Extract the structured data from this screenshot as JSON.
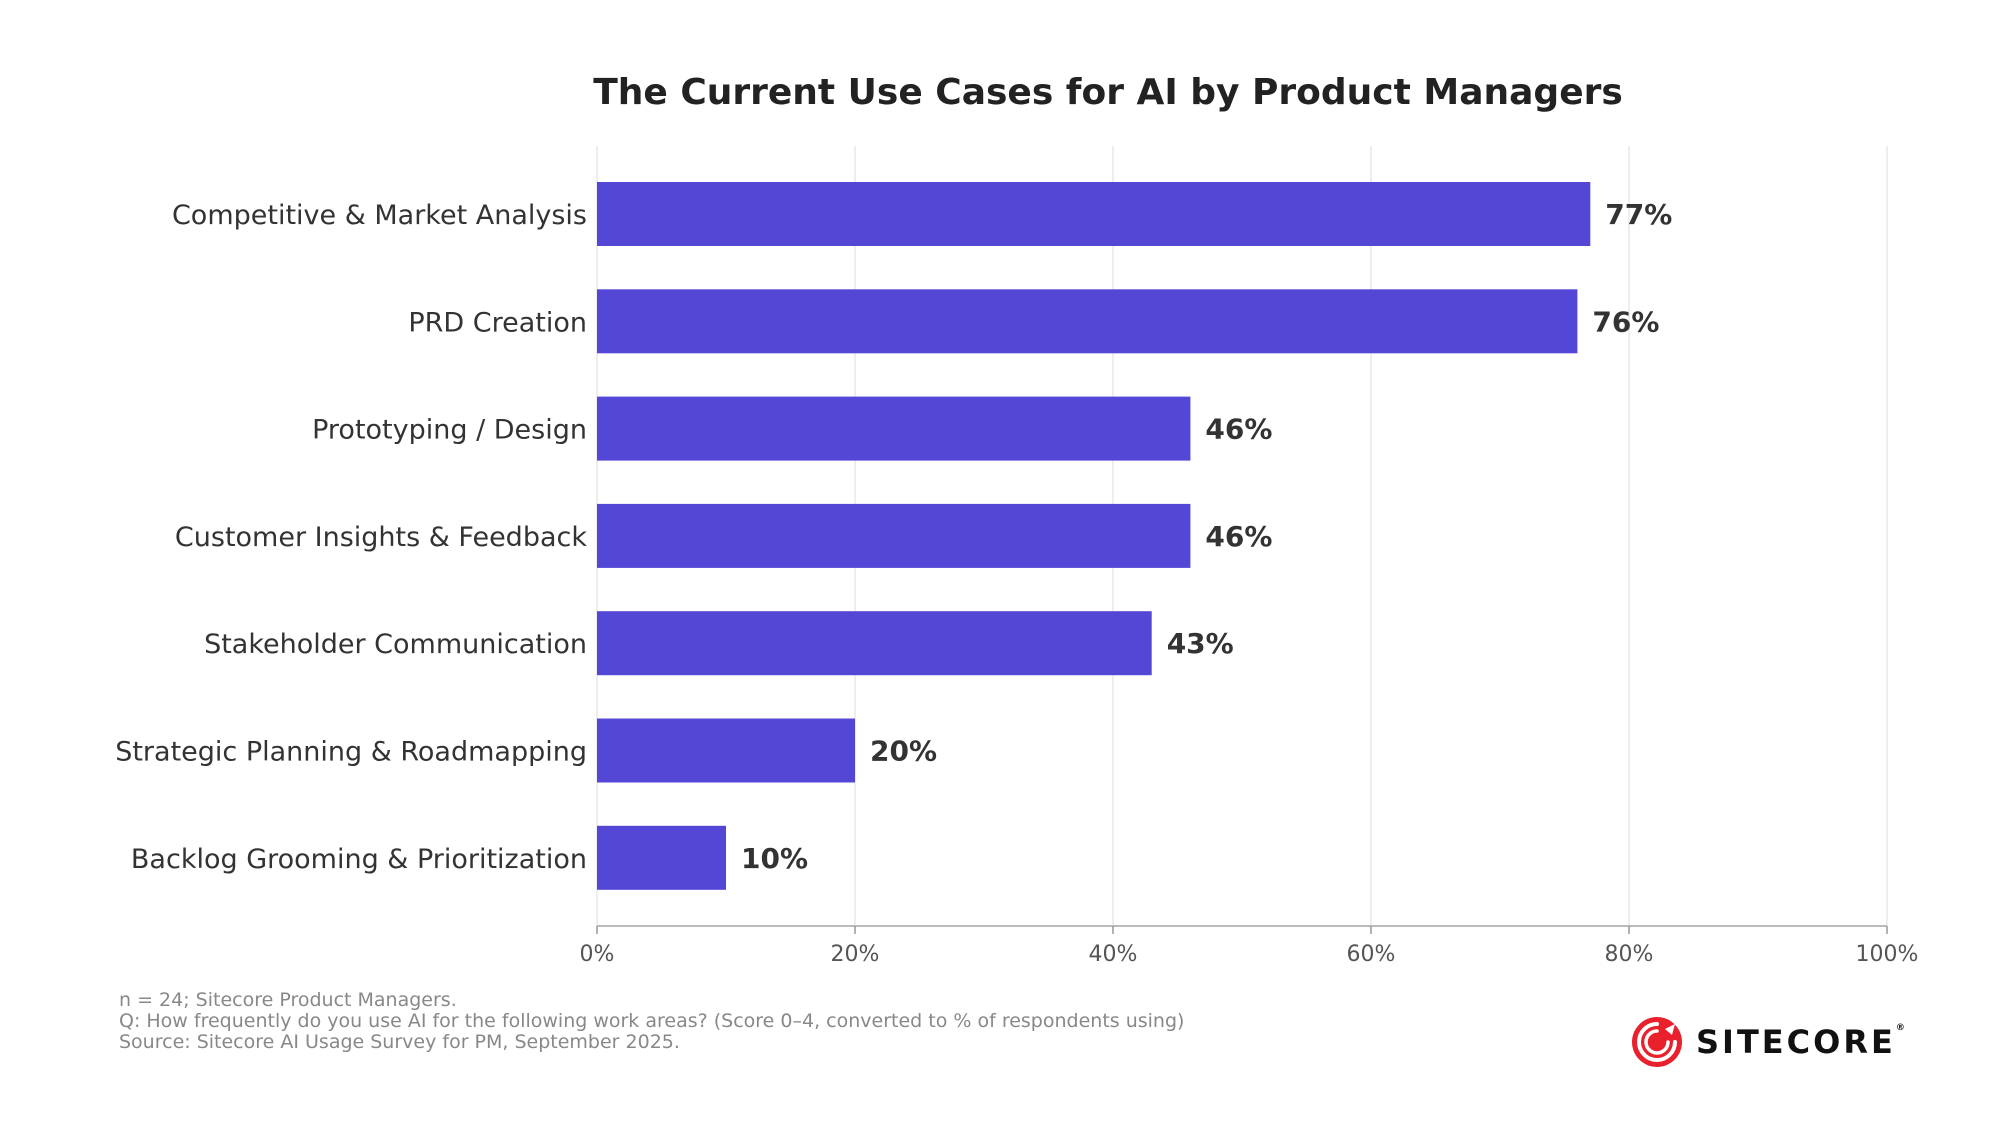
{
  "chart_data": {
    "type": "bar",
    "orientation": "horizontal",
    "title": "The Current Use Cases for AI by Product Managers",
    "categories": [
      "Competitive & Market Analysis",
      "PRD Creation",
      "Prototyping / Design",
      "Customer Insights & Feedback",
      "Stakeholder Communication",
      "Strategic Planning & Roadmapping",
      "Backlog Grooming & Prioritization"
    ],
    "values": [
      77,
      76,
      46,
      46,
      43,
      20,
      10
    ],
    "value_labels": [
      "77%",
      "76%",
      "46%",
      "46%",
      "43%",
      "20%",
      "10%"
    ],
    "xlim": [
      0,
      100
    ],
    "x_ticks": [
      0,
      20,
      40,
      60,
      80,
      100
    ],
    "x_tick_labels": [
      "0%",
      "20%",
      "40%",
      "60%",
      "80%",
      "100%"
    ],
    "grid": "vertical",
    "bar_color": "#5447d6",
    "xlabel": "",
    "ylabel": ""
  },
  "footnotes": [
    "n = 24; Sitecore Product Managers.",
    "Q: How frequently do you use AI for the following work areas? (Score 0–4, converted to % of respondents using)",
    "Source: Sitecore AI Usage Survey for PM, September 2025."
  ],
  "logo": {
    "text": "SITECORE",
    "registered": "®",
    "color": "#e8212d",
    "icon": "sitecore-logo-icon"
  }
}
